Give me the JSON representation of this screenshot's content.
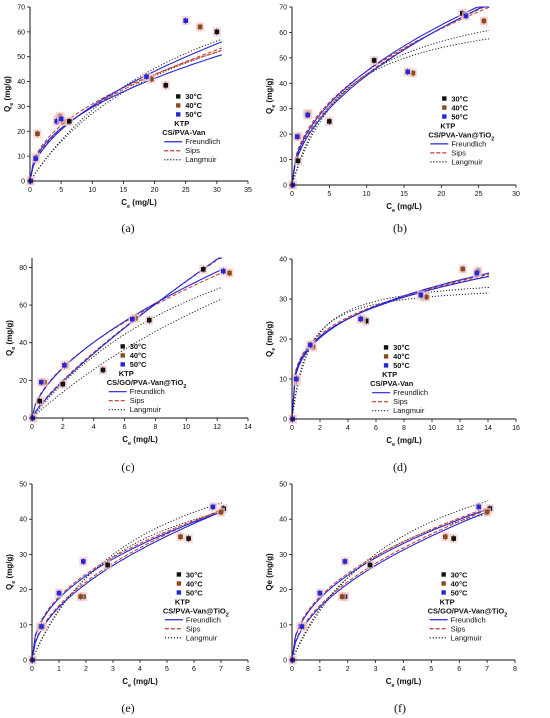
{
  "colors": {
    "c30": "#111111",
    "c40": "#8b4a1e",
    "c50": "#2727d6",
    "freundlich": "#2727d6",
    "sips": "#c0392b",
    "langmuir": "#222222",
    "errfill": "#f5c9c9"
  },
  "chart_data": [
    {
      "type": "scatter",
      "caption": "(a)",
      "xlabel": "C",
      "xlabel_sub": "e",
      "xlabel_unit": " (mg/L)",
      "ylabel": "Q",
      "ylabel_sub": "e",
      "ylabel_unit": " (mg/g)",
      "xlim": [
        0,
        35
      ],
      "ylim": [
        0,
        70
      ],
      "xticks": [
        0,
        5,
        10,
        15,
        20,
        25,
        30,
        35
      ],
      "yticks": [
        0,
        10,
        20,
        30,
        40,
        50,
        60,
        70
      ],
      "legend": [
        "30°C",
        "40°C",
        "50°C",
        "KTP",
        "CS/PVA-Van",
        "Freundlich",
        "Sips",
        "Langmuir"
      ],
      "legend_position": "center-right",
      "series": [
        {
          "name": "30°C",
          "x": [
            0.1,
            1.0,
            4.5,
            6.3,
            21.8,
            30.0
          ],
          "y": [
            0,
            9.5,
            25,
            24,
            38.5,
            60
          ]
        },
        {
          "name": "40°C",
          "x": [
            0.1,
            1.2,
            4.8,
            5.3,
            19.5,
            27.3
          ],
          "y": [
            0,
            19,
            26,
            24,
            41,
            62
          ]
        },
        {
          "name": "50°C",
          "x": [
            0.1,
            0.9,
            4.3,
            5.0,
            18.7,
            25.0
          ],
          "y": [
            0,
            9,
            24,
            25,
            42,
            64.5
          ]
        }
      ],
      "fits": {
        "freundlich": [
          [
            9.8,
            0.48
          ],
          [
            8.5,
            0.55
          ]
        ],
        "sips": [
          [
            10.5,
            0.47
          ],
          [
            9.0,
            0.52
          ]
        ],
        "langmuir": [
          [
            95,
            0.04
          ],
          [
            110,
            0.035
          ]
        ]
      }
    },
    {
      "type": "scatter",
      "caption": "(b)",
      "xlabel": "C",
      "xlabel_sub": "e",
      "xlabel_unit": " (mg/L)",
      "ylabel": "Q",
      "ylabel_sub": "e",
      "ylabel_unit": " (mg/g)",
      "xlim": [
        0,
        30
      ],
      "ylim": [
        0,
        70
      ],
      "xticks": [
        0,
        5,
        10,
        15,
        20,
        25,
        30
      ],
      "yticks": [
        0,
        10,
        20,
        30,
        40,
        50,
        60,
        70
      ],
      "legend": [
        "30°C",
        "40°C",
        "50°C",
        "KTP",
        "CS/PVA-Van@TiO",
        "Freundlich",
        "Sips",
        "Langmuir"
      ],
      "legend_sub": "2",
      "legend_position": "center-right",
      "series": [
        {
          "name": "30°C",
          "x": [
            0.1,
            0.8,
            2.0,
            5.0,
            11.0,
            22.8
          ],
          "y": [
            0,
            9.5,
            28,
            25,
            49,
            67.5
          ]
        },
        {
          "name": "40°C",
          "x": [
            0.1,
            0.9,
            2.2,
            16.2,
            25.7
          ],
          "y": [
            0,
            19,
            28,
            44,
            64.5
          ]
        },
        {
          "name": "50°C",
          "x": [
            0.1,
            0.7,
            2.1,
            15.5,
            23.3
          ],
          "y": [
            0,
            19,
            27.5,
            44.5,
            66.5
          ]
        }
      ],
      "fits": {
        "freundlich": [
          [
            14.5,
            0.49
          ],
          [
            13.0,
            0.52
          ]
        ],
        "sips": [
          [
            15.5,
            0.46
          ],
          [
            13.8,
            0.5
          ]
        ],
        "langmuir": [
          [
            80,
            0.12
          ],
          [
            72,
            0.15
          ]
        ]
      }
    },
    {
      "type": "scatter",
      "caption": "(c)",
      "xlabel": "C",
      "xlabel_sub": "e",
      "xlabel_unit": " (mg/L)",
      "ylabel": "Q",
      "ylabel_sub": "e",
      "ylabel_unit": " (mg/g)",
      "xlim": [
        0,
        14
      ],
      "ylim": [
        0,
        85
      ],
      "xticks": [
        0,
        2,
        4,
        6,
        8,
        10,
        12,
        14
      ],
      "yticks": [
        0,
        20,
        40,
        60,
        80
      ],
      "legend": [
        "30°C",
        "40°C",
        "50°C",
        "KTP",
        "CS/GO/PVA-Van@TiO",
        "Freundlich",
        "Sips",
        "Langmuir"
      ],
      "legend_sub": "2",
      "legend_position": "center",
      "series": [
        {
          "name": "30°C",
          "x": [
            0.05,
            0.5,
            2.0,
            4.6,
            7.6,
            11.1
          ],
          "y": [
            0,
            9,
            18,
            25.5,
            52,
            79
          ]
        },
        {
          "name": "40°C",
          "x": [
            0.05,
            0.8,
            2.2,
            6.7,
            12.8
          ],
          "y": [
            0,
            19,
            28,
            53,
            77
          ]
        },
        {
          "name": "50°C",
          "x": [
            0.05,
            0.6,
            2.1,
            6.5,
            12.4
          ],
          "y": [
            0,
            19,
            28,
            52.5,
            78
          ]
        }
      ],
      "fits": {
        "freundlich": [
          [
            17.5,
            0.6
          ],
          [
            11.0,
            0.82
          ]
        ],
        "sips": [
          [
            18.0,
            0.58
          ],
          [
            11.5,
            0.8
          ]
        ],
        "langmuir": [
          [
            150,
            0.07
          ],
          [
            210,
            0.035
          ]
        ]
      }
    },
    {
      "type": "scatter",
      "caption": "(d)",
      "xlabel": "C",
      "xlabel_sub": "e",
      "xlabel_unit": " (mg/L)",
      "ylabel": "Q",
      "ylabel_sub": "e",
      "ylabel_unit": " (mg/g)",
      "xlim": [
        0,
        16
      ],
      "ylim": [
        0,
        40
      ],
      "xticks": [
        0,
        2,
        4,
        6,
        8,
        10,
        12,
        14,
        16
      ],
      "yticks": [
        0,
        10,
        20,
        30,
        40
      ],
      "legend": [
        "30°C",
        "40°C",
        "50°C",
        "KTP",
        "CS/PVA-Van",
        "Freundlich",
        "Sips",
        "Langmuir"
      ],
      "legend_position": "center",
      "series": [
        {
          "name": "30°C",
          "x": [
            0.05,
            0.3,
            1.4,
            5.3,
            9.4,
            13.3
          ],
          "y": [
            0,
            9.5,
            18.5,
            24.5,
            30.5,
            37
          ]
        },
        {
          "name": "40°C",
          "x": [
            0.05,
            0.35,
            1.5,
            5.0,
            9.6,
            12.2
          ],
          "y": [
            0,
            10,
            18,
            25,
            30.5,
            37.5
          ]
        },
        {
          "name": "50°C",
          "x": [
            0.05,
            0.3,
            1.3,
            4.9,
            9.2,
            13.2
          ],
          "y": [
            0,
            10,
            18.5,
            25,
            31,
            36.5
          ]
        }
      ],
      "fits": {
        "freundlich": [
          [
            17.0,
            0.28
          ],
          [
            16.5,
            0.3
          ]
        ],
        "sips": [
          [
            17.5,
            0.27
          ],
          [
            16.8,
            0.29
          ]
        ],
        "langmuir": [
          [
            36,
            0.75
          ],
          [
            34,
            0.9
          ]
        ]
      }
    },
    {
      "type": "scatter",
      "caption": "(e)",
      "xlabel": "C",
      "xlabel_sub": "e",
      "xlabel_unit": " (mg/L)",
      "ylabel": "Q",
      "ylabel_sub": "e",
      "ylabel_unit": " (mg/g)",
      "xlim": [
        0,
        8
      ],
      "ylim": [
        0,
        50
      ],
      "xticks": [
        0,
        1,
        2,
        3,
        4,
        5,
        6,
        7,
        8
      ],
      "yticks": [
        0,
        10,
        20,
        30,
        40,
        50
      ],
      "legend": [
        "30°C",
        "40°C",
        "50°C",
        "KTP",
        "CS/PVA-Van@TiO",
        "Freundlich",
        "Sips",
        "Langmuir"
      ],
      "legend_sub": "2",
      "legend_position": "center-right",
      "series": [
        {
          "name": "30°C",
          "x": [
            0.02,
            0.3,
            1.9,
            2.8,
            5.8,
            7.1
          ],
          "y": [
            0,
            9.5,
            18,
            27,
            34.5,
            43
          ]
        },
        {
          "name": "40°C",
          "x": [
            0.02,
            0.4,
            1.8,
            5.5,
            7.0
          ],
          "y": [
            0,
            9.5,
            18,
            35,
            42
          ]
        },
        {
          "name": "50°C",
          "x": [
            0.02,
            0.35,
            1.0,
            1.9,
            6.7
          ],
          "y": [
            0,
            9.5,
            19,
            28,
            43.5
          ]
        }
      ],
      "fits": {
        "freundlich": [
          [
            17.5,
            0.45
          ],
          [
            15.0,
            0.53
          ]
        ],
        "sips": [
          [
            18.0,
            0.44
          ],
          [
            15.5,
            0.52
          ]
        ],
        "langmuir": [
          [
            62,
            0.3
          ],
          [
            70,
            0.25
          ]
        ]
      }
    },
    {
      "type": "scatter",
      "caption": "(f)",
      "xlabel": "C",
      "xlabel_sub": "e",
      "xlabel_unit": " (mg/L)",
      "ylabel": "Qe",
      "ylabel_sub": "",
      "ylabel_unit": " (mg/g)",
      "xlim": [
        0,
        8
      ],
      "ylim": [
        0,
        50
      ],
      "xticks": [
        0,
        1,
        2,
        3,
        4,
        5,
        6,
        7,
        8
      ],
      "yticks": [
        0,
        10,
        20,
        30,
        40,
        50
      ],
      "legend": [
        "30°C",
        "40°C",
        "50°C",
        "KTP",
        "CS/GO/PVA-Van@TiO",
        "Freundlich",
        "Sips",
        "Langmuir"
      ],
      "legend_sub": "2",
      "legend_position": "center-right",
      "series": [
        {
          "name": "30°C",
          "x": [
            0.02,
            0.3,
            1.9,
            2.8,
            5.8,
            7.1
          ],
          "y": [
            0,
            9.5,
            18,
            27,
            34.5,
            43
          ]
        },
        {
          "name": "40°C",
          "x": [
            0.02,
            0.4,
            1.8,
            5.5,
            7.0
          ],
          "y": [
            0,
            9.5,
            18,
            35,
            42
          ]
        },
        {
          "name": "50°C",
          "x": [
            0.02,
            0.35,
            1.0,
            1.9,
            6.7
          ],
          "y": [
            0,
            9.5,
            19,
            28,
            43.5
          ]
        }
      ],
      "fits": {
        "freundlich": [
          [
            17.5,
            0.46
          ],
          [
            15.0,
            0.53
          ]
        ],
        "sips": [
          [
            18.0,
            0.45
          ],
          [
            15.5,
            0.52
          ]
        ],
        "langmuir": [
          [
            60,
            0.32
          ],
          [
            72,
            0.24
          ]
        ]
      }
    }
  ]
}
